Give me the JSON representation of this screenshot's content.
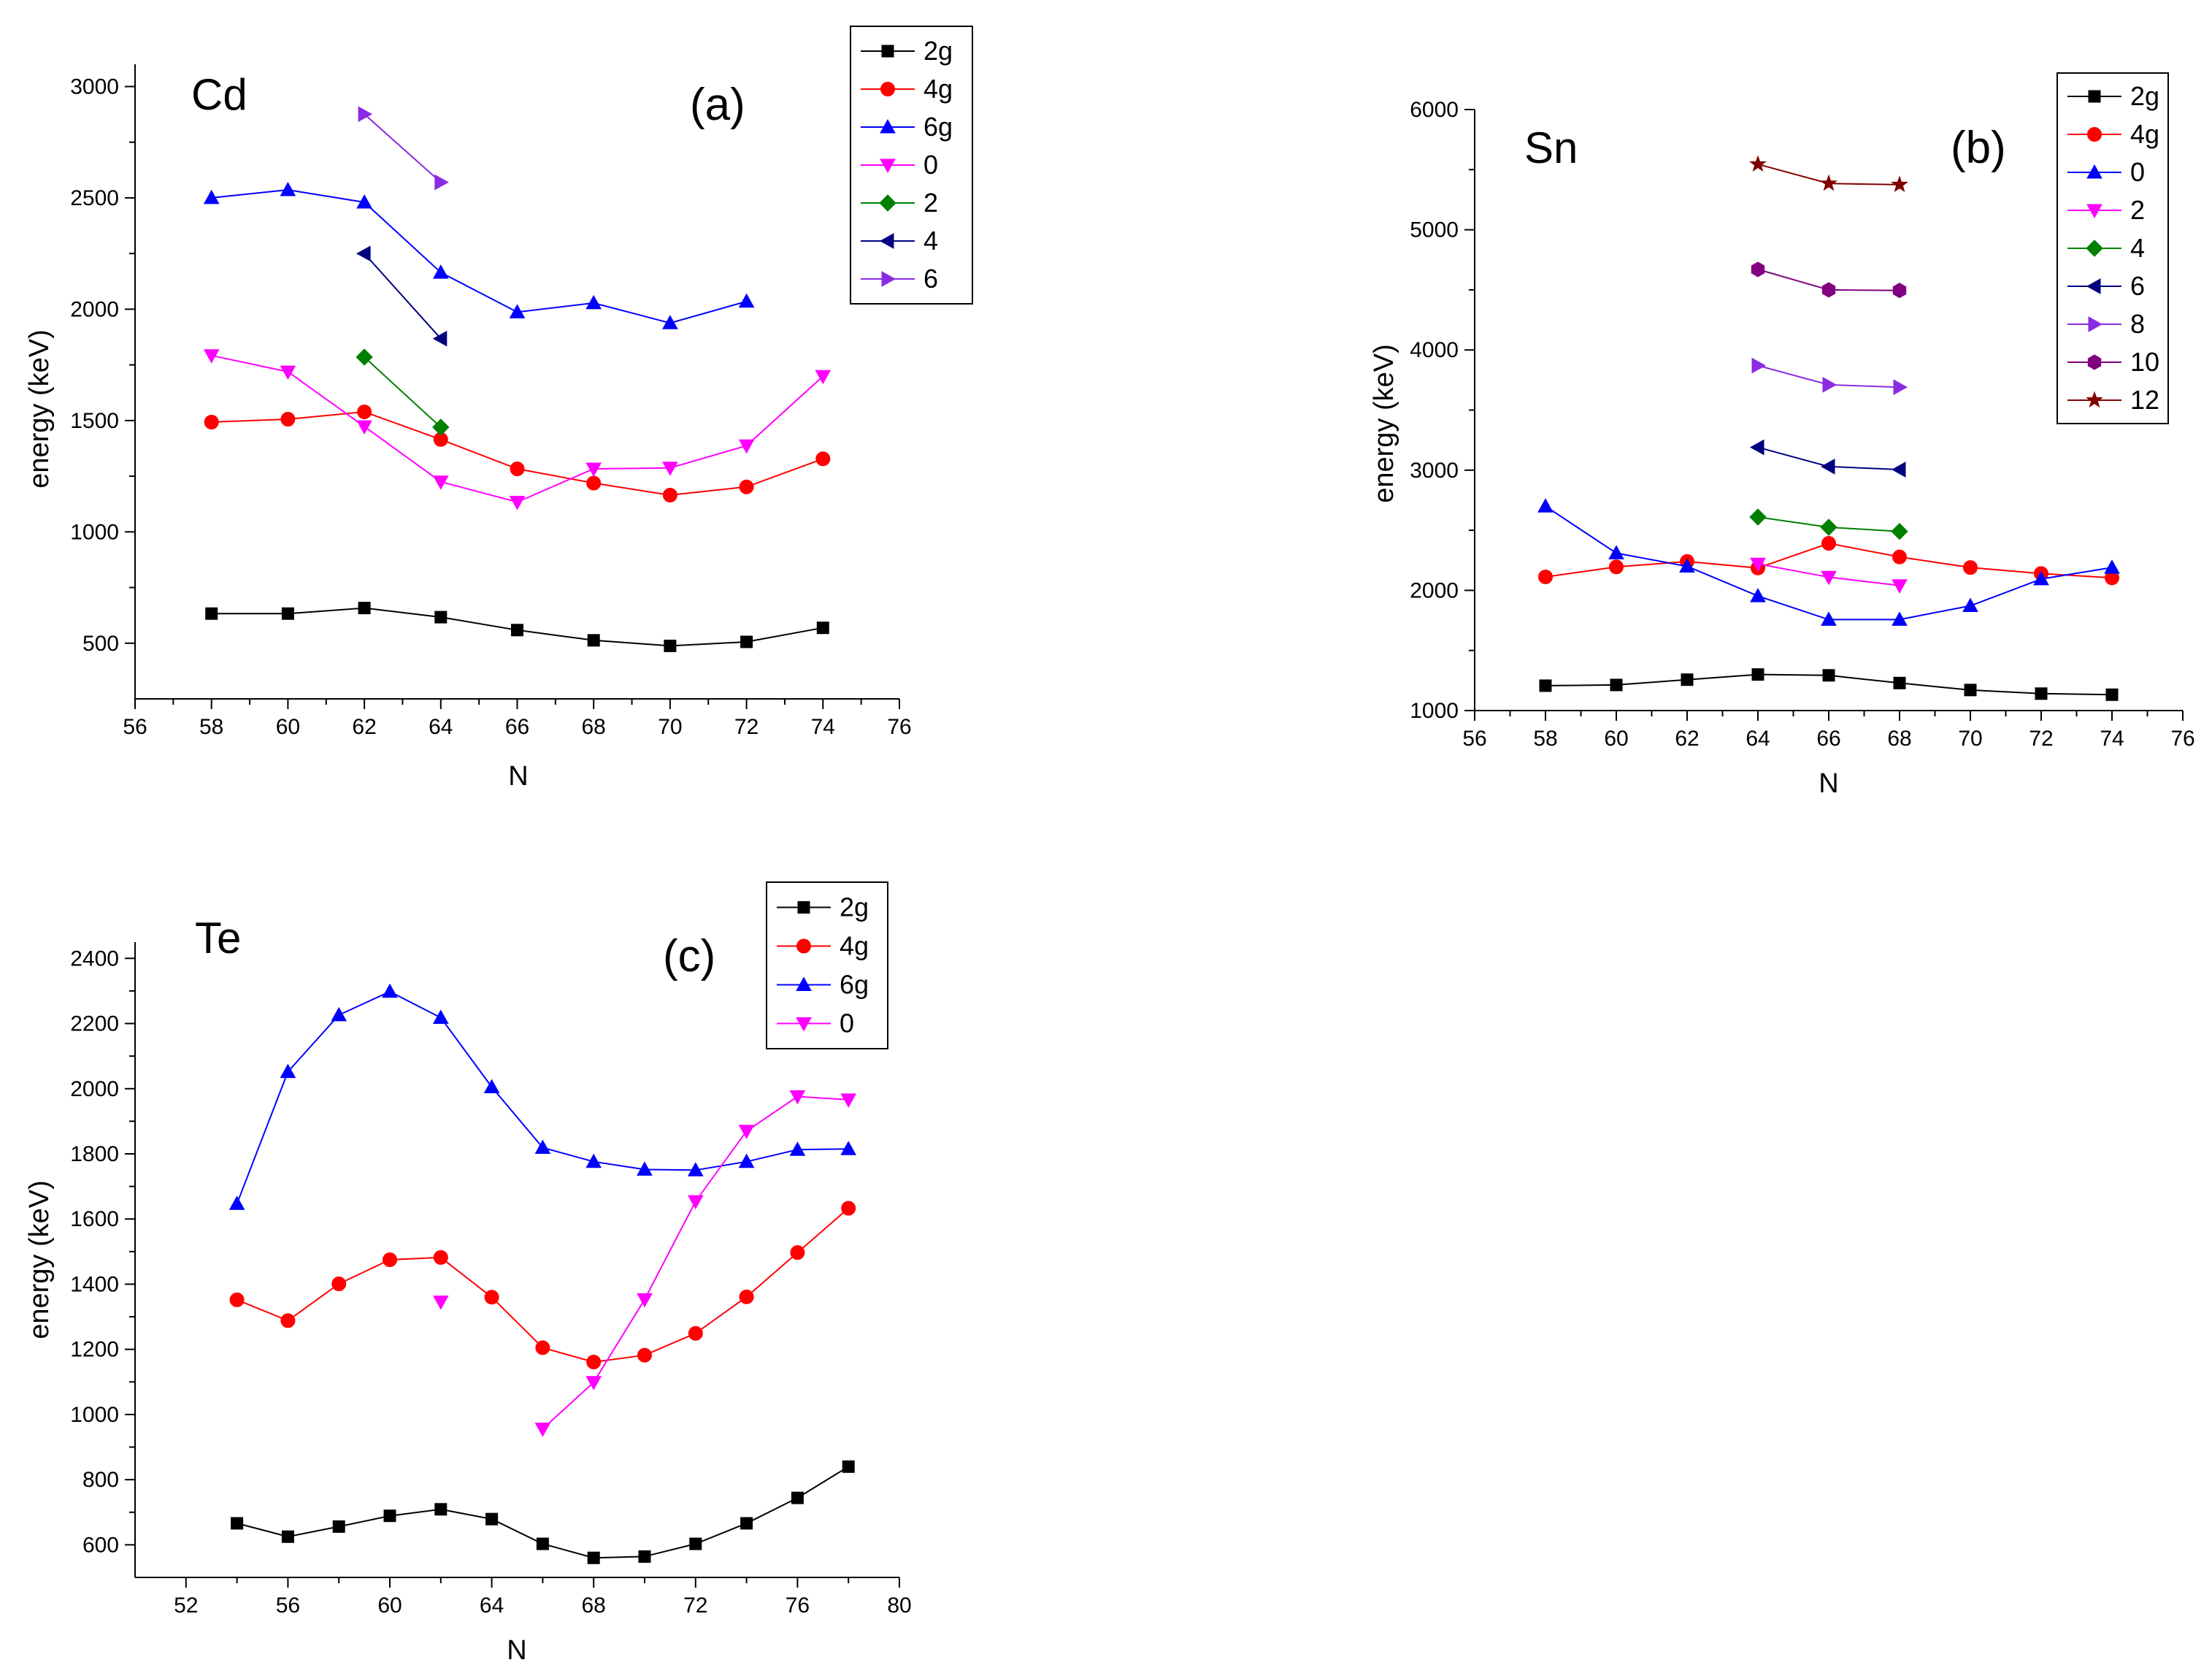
{
  "chart_data": [
    {
      "type": "line",
      "element": "Cd",
      "panel_label": "(a)",
      "xlabel": "N",
      "ylabel": "energy (keV)",
      "xlim": [
        56,
        76
      ],
      "ylim": [
        250,
        3100
      ],
      "xticks": [
        56,
        58,
        60,
        62,
        64,
        66,
        68,
        70,
        72,
        74,
        76
      ],
      "yticks": [
        500,
        1000,
        1500,
        2000,
        2500,
        3000
      ],
      "series": [
        {
          "name": "2g",
          "color": "#000000",
          "marker": "square",
          "x": [
            58,
            60,
            62,
            64,
            66,
            68,
            70,
            72,
            74
          ],
          "values": [
            633,
            633,
            658,
            617,
            559,
            513,
            488,
            506,
            569
          ]
        },
        {
          "name": "4g",
          "color": "#ff0000",
          "marker": "circle",
          "x": [
            58,
            60,
            62,
            64,
            66,
            68,
            70,
            72,
            74
          ],
          "values": [
            1493,
            1506,
            1539,
            1415,
            1283,
            1219,
            1165,
            1202,
            1328
          ]
        },
        {
          "name": "6g",
          "color": "#0000ff",
          "marker": "triangle-up",
          "x": [
            58,
            60,
            62,
            64,
            66,
            68,
            70,
            72,
            74
          ],
          "values": [
            2500,
            2536,
            2480,
            2165,
            1987,
            2028,
            1938,
            2035,
            null
          ]
        },
        {
          "name": "0",
          "color": "#ff00ff",
          "marker": "triangle-down",
          "x": [
            58,
            60,
            62,
            64,
            66,
            68,
            70,
            72,
            74
          ],
          "values": [
            1792,
            1719,
            1473,
            1225,
            1134,
            1283,
            1287,
            1387,
            1699
          ]
        },
        {
          "name": "2",
          "color": "#008000",
          "marker": "diamond",
          "x": [
            62,
            64
          ],
          "values": [
            1785,
            1470
          ]
        },
        {
          "name": "4",
          "color": "#000080",
          "marker": "triangle-left",
          "x": [
            62,
            64
          ],
          "values": [
            2250,
            1868
          ]
        },
        {
          "name": "6",
          "color": "#8a2be2",
          "marker": "triangle-right",
          "x": [
            62,
            64
          ],
          "values": [
            2876,
            2570
          ]
        }
      ]
    },
    {
      "type": "line",
      "element": "Sn",
      "panel_label": "(b)",
      "xlabel": "N",
      "ylabel": "energy (keV)",
      "xlim": [
        56,
        76
      ],
      "ylim": [
        1000,
        6000
      ],
      "xticks": [
        56,
        58,
        60,
        62,
        64,
        66,
        68,
        70,
        72,
        74,
        76
      ],
      "yticks": [
        1000,
        2000,
        3000,
        4000,
        5000,
        6000
      ],
      "series": [
        {
          "name": "2g",
          "color": "#000000",
          "marker": "square",
          "x": [
            58,
            60,
            62,
            64,
            66,
            68,
            70,
            72,
            74
          ],
          "values": [
            1207,
            1213,
            1257,
            1300,
            1293,
            1229,
            1171,
            1141,
            1132
          ]
        },
        {
          "name": "4g",
          "color": "#ff0000",
          "marker": "circle",
          "x": [
            58,
            60,
            62,
            64,
            66,
            68,
            70,
            72,
            74
          ],
          "values": [
            2112,
            2195,
            2240,
            2186,
            2391,
            2278,
            2190,
            2140,
            2104
          ]
        },
        {
          "name": "0",
          "color": "#0000ff",
          "marker": "triangle-up",
          "x": [
            58,
            60,
            62,
            64,
            66,
            68,
            70,
            72,
            74
          ],
          "values": [
            2700,
            2310,
            2200,
            1953,
            1757,
            1757,
            1872,
            2094,
            2190
          ]
        },
        {
          "name": "2",
          "color": "#ff00ff",
          "marker": "triangle-down",
          "x": [
            64,
            66,
            68
          ],
          "values": [
            2220,
            2110,
            2040
          ]
        },
        {
          "name": "4",
          "color": "#008000",
          "marker": "diamond",
          "x": [
            64,
            66,
            68
          ],
          "values": [
            2610,
            2525,
            2490
          ]
        },
        {
          "name": "6",
          "color": "#000080",
          "marker": "triangle-left",
          "x": [
            64,
            66,
            68
          ],
          "values": [
            3190,
            3030,
            3005
          ]
        },
        {
          "name": "8",
          "color": "#8a2be2",
          "marker": "triangle-right",
          "x": [
            64,
            66,
            68
          ],
          "values": [
            3870,
            3710,
            3690
          ]
        },
        {
          "name": "10",
          "color": "#800080",
          "marker": "hexagon",
          "x": [
            64,
            66,
            68
          ],
          "values": [
            4670,
            4500,
            4495
          ]
        },
        {
          "name": "12",
          "color": "#800000",
          "marker": "star",
          "x": [
            64,
            66,
            68
          ],
          "values": [
            5545,
            5385,
            5375
          ]
        }
      ]
    },
    {
      "type": "line",
      "element": "Te",
      "panel_label": "(c)",
      "xlabel": "N",
      "ylabel": "energy (keV)",
      "xlim": [
        50,
        80
      ],
      "ylim": [
        500,
        2450
      ],
      "xticks": [
        52,
        56,
        60,
        64,
        68,
        72,
        76,
        80
      ],
      "yticks": [
        600,
        800,
        1000,
        1200,
        1400,
        1600,
        1800,
        2000,
        2200,
        2400
      ],
      "series": [
        {
          "name": "2g",
          "color": "#000000",
          "marker": "square",
          "x": [
            54,
            56,
            58,
            60,
            62,
            64,
            66,
            68,
            70,
            72,
            74,
            76,
            78
          ],
          "values": [
            666,
            625,
            656,
            689,
            709,
            679,
            603,
            560,
            564,
            603,
            666,
            744,
            840
          ]
        },
        {
          "name": "4g",
          "color": "#ff0000",
          "marker": "circle",
          "x": [
            54,
            56,
            58,
            60,
            62,
            64,
            66,
            68,
            70,
            72,
            74,
            76,
            78
          ],
          "values": [
            1352,
            1288,
            1401,
            1475,
            1482,
            1360,
            1205,
            1161,
            1182,
            1249,
            1361,
            1497,
            1633
          ]
        },
        {
          "name": "6g",
          "color": "#0000ff",
          "marker": "triangle-up",
          "x": [
            54,
            56,
            58,
            60,
            62,
            64,
            66,
            68,
            70,
            72,
            74,
            76,
            78
          ],
          "values": [
            1647,
            2052,
            2226,
            2298,
            2218,
            2005,
            1819,
            1776,
            1752,
            1750,
            1776,
            1813,
            1815
          ]
        },
        {
          "name": "0",
          "color": "#ff00ff",
          "marker": "triangle-down",
          "x": [
            62,
            66,
            68,
            70,
            72,
            74,
            76,
            78
          ],
          "values": [
            1346,
            956,
            1099,
            1353,
            1654,
            1870,
            1976,
            1966
          ],
          "segments": [
            [
              0
            ],
            [
              1,
              2,
              3,
              4,
              5,
              6,
              7
            ]
          ]
        }
      ]
    }
  ]
}
